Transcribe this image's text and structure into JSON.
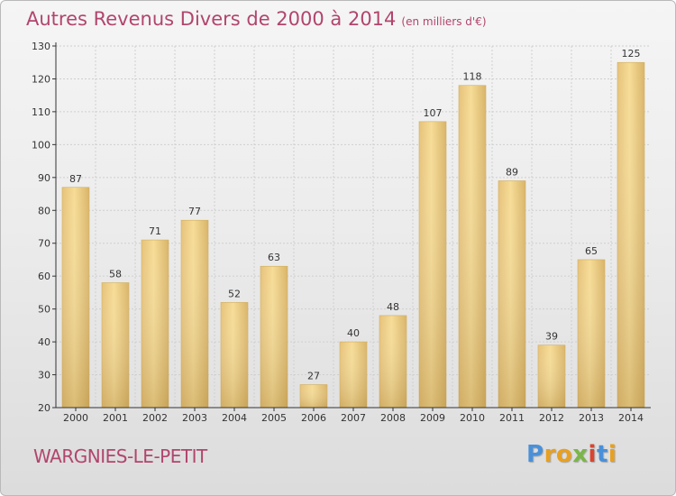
{
  "chart_data": {
    "type": "bar",
    "title": "Autres Revenus Divers de 2000 à 2014",
    "subtitle": "(en milliers d'€)",
    "xlabel": "",
    "ylabel": "",
    "categories": [
      "2000",
      "2001",
      "2002",
      "2003",
      "2004",
      "2005",
      "2006",
      "2007",
      "2008",
      "2009",
      "2010",
      "2011",
      "2012",
      "2013",
      "2014"
    ],
    "values": [
      87,
      58,
      71,
      77,
      52,
      63,
      27,
      40,
      48,
      107,
      118,
      89,
      39,
      65,
      125
    ],
    "data_labels": [
      "87",
      "58",
      "71",
      "77",
      "52",
      "63",
      "27",
      "40",
      "48",
      "107",
      "118",
      "89",
      "39",
      "65",
      "125"
    ],
    "ylim": [
      20,
      130
    ],
    "yticks": [
      20,
      30,
      40,
      50,
      60,
      70,
      80,
      90,
      100,
      110,
      120,
      130
    ],
    "grid": true,
    "legend": "none",
    "bar_color": "#e9c97a"
  },
  "footer": {
    "place": "WARGNIES-LE-PETIT",
    "logo_text": "Proxiti",
    "logo_letters": [
      {
        "char": "P",
        "color": "#4a90d9"
      },
      {
        "char": "r",
        "color": "#e8a020"
      },
      {
        "char": "o",
        "color": "#e8a020"
      },
      {
        "char": "x",
        "color": "#7ab648"
      },
      {
        "char": "i",
        "color": "#d9452f"
      },
      {
        "char": "t",
        "color": "#4a90d9"
      },
      {
        "char": "i",
        "color": "#e8a020"
      }
    ]
  },
  "colors": {
    "title": "#b1456d",
    "grid": "#cfcfcf",
    "axis": "#333333",
    "text": "#333333"
  }
}
